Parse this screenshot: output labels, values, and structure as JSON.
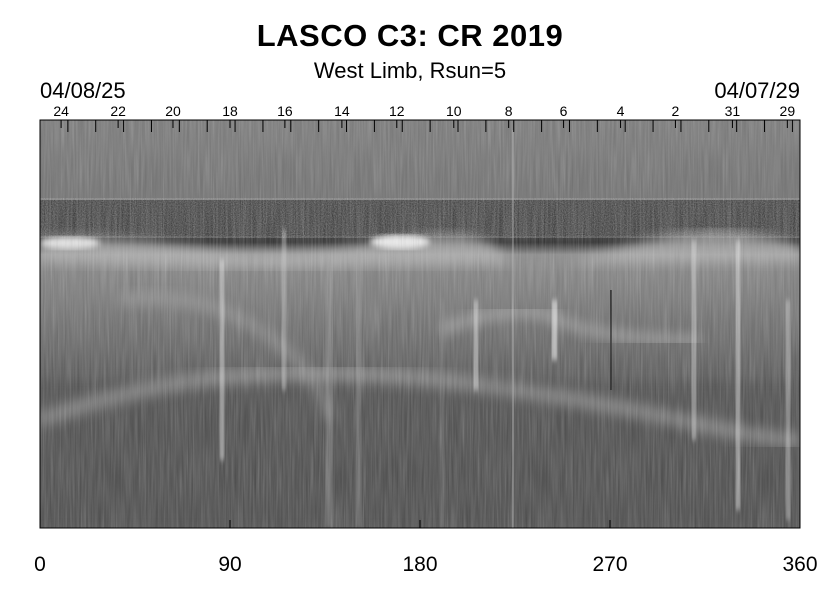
{
  "chart_data": {
    "type": "heatmap",
    "title": "LASCO C3: CR 2019",
    "subtitle": "West Limb, Rsun=5",
    "date_start": "04/08/25",
    "date_end": "04/07/29",
    "xlim": [
      0,
      360
    ],
    "x_ticks": [
      0,
      90,
      180,
      270,
      360
    ],
    "colormap": "grayscale",
    "top_axis_days": [
      {
        "day": "24",
        "x": 10
      },
      {
        "day": "22",
        "x": 37
      },
      {
        "day": "20",
        "x": 63
      },
      {
        "day": "18",
        "x": 90
      },
      {
        "day": "16",
        "x": 116
      },
      {
        "day": "14",
        "x": 143
      },
      {
        "day": "12",
        "x": 169
      },
      {
        "day": "10",
        "x": 196
      },
      {
        "day": "8",
        "x": 222
      },
      {
        "day": "6",
        "x": 248
      },
      {
        "day": "4",
        "x": 275
      },
      {
        "day": "2",
        "x": 301
      },
      {
        "day": "31",
        "x": 328
      },
      {
        "day": "29",
        "x": 354
      }
    ]
  }
}
